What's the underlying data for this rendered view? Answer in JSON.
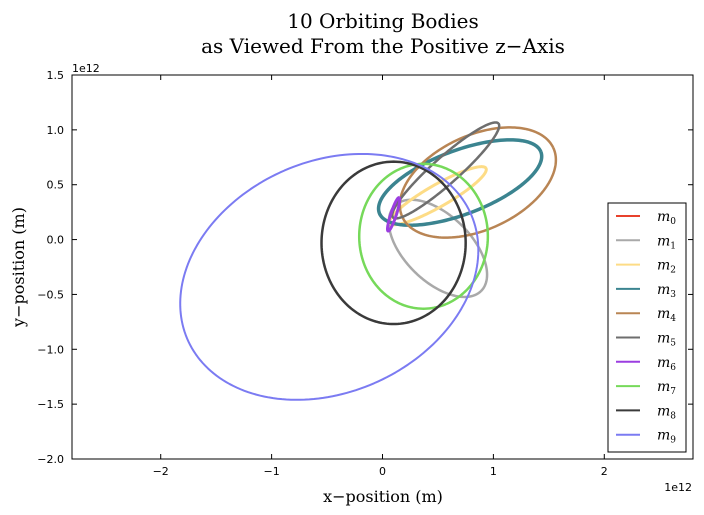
{
  "chart_data": {
    "type": "line",
    "title_line1": "10 Orbiting Bodies",
    "title_line2": "as Viewed From the Positive z−Axis",
    "xlabel": "x−position (m)",
    "ylabel": "y−position (m)",
    "x_offset_label": "1e12",
    "y_offset_label": "1e12",
    "xlim": [
      -2.8,
      2.8
    ],
    "ylim": [
      -2.0,
      1.5
    ],
    "x_ticks": [
      -2,
      -1,
      0,
      1,
      2
    ],
    "x_tick_labels": [
      "−2",
      "−1",
      "0",
      "1",
      "2"
    ],
    "y_ticks": [
      -2.0,
      -1.5,
      -1.0,
      -0.5,
      0.0,
      0.5,
      1.0,
      1.5
    ],
    "y_tick_labels": [
      "−2.0",
      "−1.5",
      "−1.0",
      "−0.5",
      "0.0",
      "0.5",
      "1.0",
      "1.5"
    ],
    "legend_position": "lower-right",
    "series": [
      {
        "name": "m",
        "sub": "0",
        "color": "#e8412c",
        "width": 2.0,
        "orbit": {
          "cx": 0.1,
          "cy": 0.3,
          "a": 0.002,
          "b": 0.002,
          "rot": 0
        }
      },
      {
        "name": "m",
        "sub": "1",
        "color": "#a9a9a9",
        "width": 2.5,
        "orbit": {
          "cx": 0.5,
          "cy": -0.08,
          "a": 0.55,
          "b": 0.3,
          "rot": -45
        }
      },
      {
        "name": "m",
        "sub": "2",
        "color": "#fddc86",
        "width": 3.0,
        "orbit": {
          "cx": 0.5,
          "cy": 0.4,
          "a": 0.5,
          "b": 0.1,
          "rot": 30
        }
      },
      {
        "name": "m",
        "sub": "3",
        "color": "#3b8490",
        "width": 3.5,
        "orbit": {
          "cx": 0.7,
          "cy": 0.52,
          "a": 0.78,
          "b": 0.29,
          "rot": 21
        }
      },
      {
        "name": "m",
        "sub": "4",
        "color": "#b98554",
        "width": 2.5,
        "orbit": {
          "cx": 0.86,
          "cy": 0.52,
          "a": 0.75,
          "b": 0.43,
          "rot": 25
        }
      },
      {
        "name": "m",
        "sub": "5",
        "color": "#6e6e6e",
        "width": 2.5,
        "orbit": {
          "cx": 0.57,
          "cy": 0.63,
          "a": 0.64,
          "b": 0.12,
          "rot": 42
        }
      },
      {
        "name": "m",
        "sub": "6",
        "color": "#9b3ee0",
        "width": 3.0,
        "orbit": {
          "cx": 0.1,
          "cy": 0.23,
          "a": 0.16,
          "b": 0.025,
          "rot": 72
        }
      },
      {
        "name": "m",
        "sub": "7",
        "color": "#76d95a",
        "width": 2.5,
        "orbit": {
          "cx": 0.37,
          "cy": 0.03,
          "a": 0.58,
          "b": 0.66,
          "rot": 0
        }
      },
      {
        "name": "m",
        "sub": "8",
        "color": "#3a3a3a",
        "width": 2.5,
        "orbit": {
          "cx": 0.1,
          "cy": -0.03,
          "a": 0.65,
          "b": 0.74,
          "rot": 0
        }
      },
      {
        "name": "m",
        "sub": "9",
        "color": "#7b7bf2",
        "width": 2.0,
        "orbit": {
          "cx": -0.48,
          "cy": -0.34,
          "a": 1.4,
          "b": 1.05,
          "rot": 25
        }
      }
    ]
  }
}
